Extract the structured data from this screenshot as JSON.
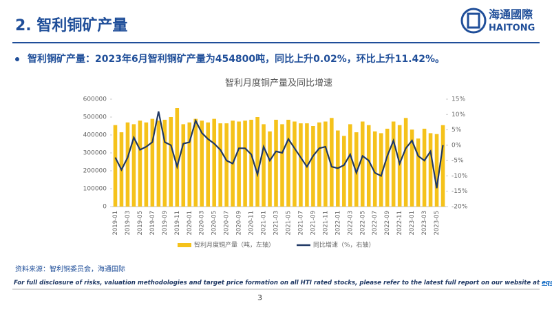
{
  "header": {
    "title": "2. 智利铜矿产量",
    "logo_cn": "海通國際",
    "logo_en": "HAITONG"
  },
  "bullet": "智利铜矿产量：2023年6月智利铜矿产量为454800吨，同比上升0.02%，环比上升11.42%。",
  "chart_data": {
    "type": "bar-line",
    "title": "智利月度铜产量及同比增速",
    "categories": [
      "2019-01",
      null,
      "2019-03",
      null,
      "2019-05",
      null,
      "2019-07",
      null,
      "2019-09",
      null,
      "2019-11",
      null,
      "2020-01",
      null,
      "2020-03",
      null,
      "2020-05",
      null,
      "2020-07",
      null,
      "2020-09",
      null,
      "2020-11",
      null,
      "2021-01",
      null,
      "2021-03",
      null,
      "2021-05",
      null,
      "2021-07",
      null,
      "2021-09",
      null,
      "2021-11",
      null,
      "2022-01",
      null,
      "2022-03",
      null,
      "2022-05",
      null,
      "2022-07",
      null,
      "2022-09",
      null,
      "2022-11",
      null,
      "2023-01",
      null,
      "2023-03",
      null,
      "2023-05",
      null
    ],
    "series": [
      {
        "name": "智利月度铜产量（吨，左轴）",
        "color": "#f5c21b",
        "type": "bar",
        "values": [
          455000,
          415000,
          470000,
          460000,
          480000,
          470000,
          490000,
          480000,
          485000,
          500000,
          550000,
          460000,
          470000,
          490000,
          480000,
          470000,
          490000,
          465000,
          465000,
          480000,
          475000,
          480000,
          485000,
          500000,
          460000,
          420000,
          485000,
          460000,
          485000,
          475000,
          465000,
          465000,
          450000,
          470000,
          475000,
          495000,
          425000,
          395000,
          460000,
          415000,
          475000,
          455000,
          420000,
          410000,
          435000,
          475000,
          455000,
          495000,
          430000,
          380000,
          435000,
          410000,
          405000,
          454800
        ]
      },
      {
        "name": "同比增速（%，右轴）",
        "color": "#1f3864",
        "type": "line",
        "axis": "y2",
        "values": [
          -4,
          -8,
          -4,
          2.5,
          -1.5,
          -0.5,
          1,
          11,
          1,
          0,
          -7,
          0.5,
          1,
          8,
          4,
          2,
          0.5,
          -1.5,
          -5,
          -6,
          -1,
          -1,
          -3,
          -9.5,
          -0.5,
          -5,
          -2,
          -2.5,
          2,
          -1,
          -4,
          -7,
          -3.5,
          -1,
          -0.5,
          -7,
          -7.5,
          -6.5,
          -3,
          -9,
          -3.5,
          -5,
          -9,
          -10,
          -3.5,
          1.5,
          -6,
          -1,
          1.5,
          -3.5,
          -5,
          -2,
          -14,
          0.02
        ]
      }
    ],
    "ylim": [
      0,
      600000
    ],
    "yticks": [
      0,
      100000,
      200000,
      300000,
      400000,
      500000,
      600000
    ],
    "y2lim": [
      -20,
      15
    ],
    "y2ticks": [
      {
        "value": -20,
        "label": "-20%"
      },
      {
        "value": -15,
        "label": "-15%"
      },
      {
        "value": -10,
        "label": "-10%"
      },
      {
        "value": -5,
        "label": "-5%"
      },
      {
        "value": 0,
        "label": "0%"
      },
      {
        "value": 5,
        "label": "5%"
      },
      {
        "value": 10,
        "label": "10%"
      },
      {
        "value": 15,
        "label": "15%"
      }
    ],
    "grid": false,
    "legend": "bottom"
  },
  "source": "资料来源：智利铜委员会，海通国际",
  "disclosure": "For full disclosure of risks, valuation methodologies and target price formation on all HTI rated stocks, please refer to the latest full report on our website at",
  "link": "equities.htisec.com",
  "page_number": "3"
}
